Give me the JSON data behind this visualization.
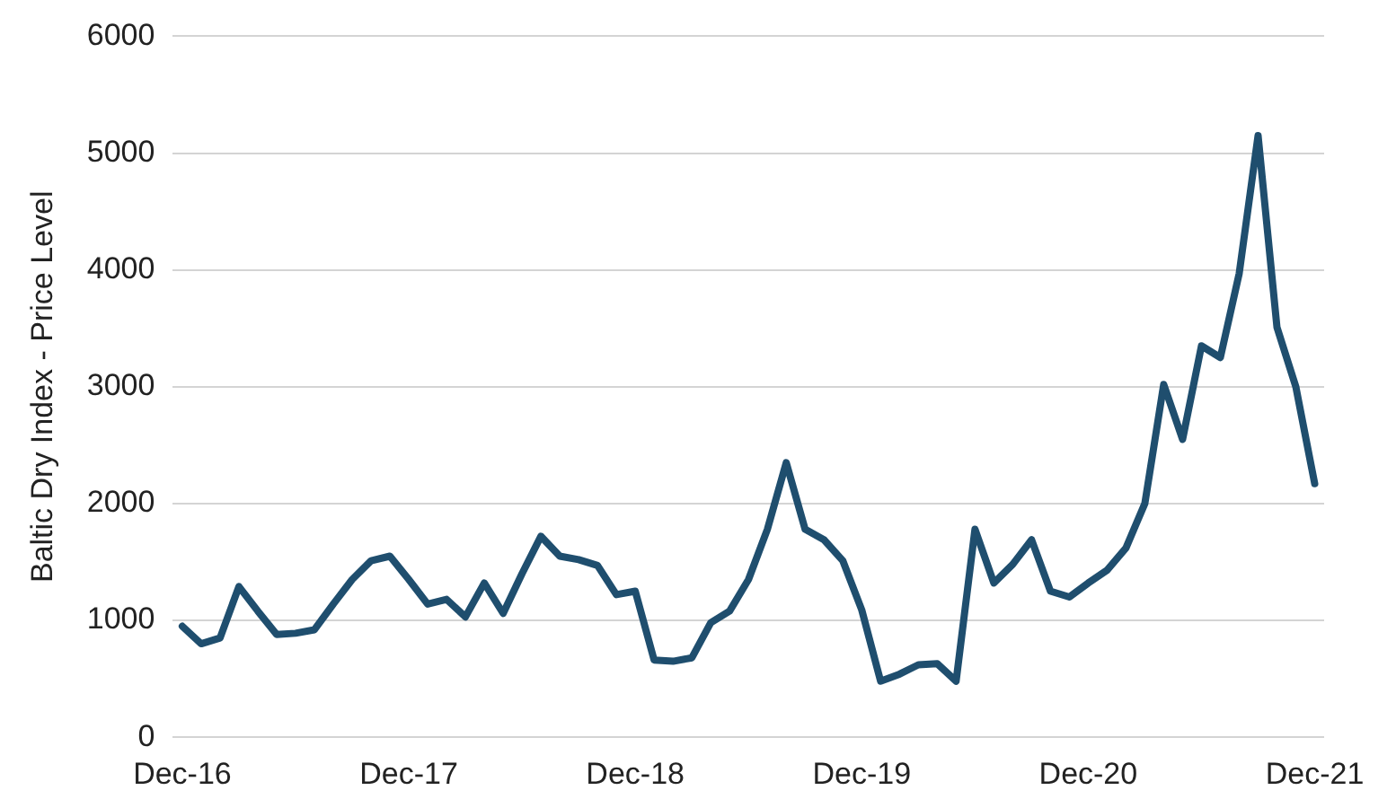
{
  "chart_data": {
    "type": "line",
    "ylabel": "Baltic Dry Index - Price Level",
    "categories": [
      "Dec-16",
      null,
      null,
      null,
      null,
      null,
      null,
      null,
      null,
      null,
      null,
      null,
      "Dec-17",
      null,
      null,
      null,
      null,
      null,
      null,
      null,
      null,
      null,
      null,
      null,
      "Dec-18",
      null,
      null,
      null,
      null,
      null,
      null,
      null,
      null,
      null,
      null,
      null,
      "Dec-19",
      null,
      null,
      null,
      null,
      null,
      null,
      null,
      null,
      null,
      null,
      null,
      "Dec-20",
      null,
      null,
      null,
      null,
      null,
      null,
      null,
      null,
      null,
      null,
      null,
      "Dec-21"
    ],
    "series": [
      {
        "color": "#1f4e6e",
        "values": [
          950,
          800,
          850,
          1290,
          1080,
          880,
          890,
          920,
          1140,
          1350,
          1510,
          1550,
          1350,
          1140,
          1180,
          1030,
          1320,
          1060,
          1400,
          1720,
          1550,
          1520,
          1470,
          1220,
          1250,
          660,
          650,
          680,
          980,
          1080,
          1350,
          1780,
          2350,
          1780,
          1690,
          1510,
          1090,
          480,
          540,
          620,
          630,
          480,
          1780,
          1320,
          1480,
          1690,
          1250,
          1200,
          1320,
          1430,
          1620,
          2000,
          3020,
          2550,
          3350,
          3250,
          3970,
          5150,
          3510,
          3000,
          2170
        ]
      }
    ],
    "ylim": [
      0,
      6000
    ],
    "yticks": [
      0,
      1000,
      2000,
      3000,
      4000,
      5000,
      6000
    ],
    "grid": "y",
    "legend": false,
    "marker": "none",
    "line_style": "solid"
  }
}
